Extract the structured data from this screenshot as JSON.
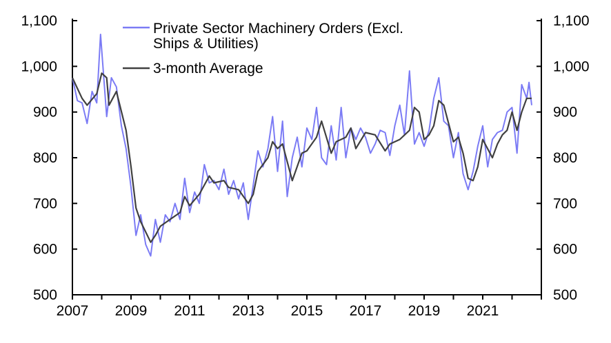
{
  "chart_data": {
    "type": "line",
    "title": "",
    "xlabel": "",
    "ylabel": "",
    "xlim": [
      2007,
      2023
    ],
    "ylim": [
      500,
      1100
    ],
    "grid": false,
    "legend_position": "top-center",
    "x_ticks": [
      {
        "value": 2007,
        "label": "2007"
      },
      {
        "value": 2009,
        "label": "2009"
      },
      {
        "value": 2011,
        "label": "2011"
      },
      {
        "value": 2013,
        "label": "2013"
      },
      {
        "value": 2015,
        "label": "2015"
      },
      {
        "value": 2017,
        "label": "2017"
      },
      {
        "value": 2019,
        "label": "2019"
      },
      {
        "value": 2021,
        "label": "2021"
      }
    ],
    "y_ticks": [
      {
        "value": 500,
        "label": "500"
      },
      {
        "value": 600,
        "label": "600"
      },
      {
        "value": 700,
        "label": "700"
      },
      {
        "value": 800,
        "label": "800"
      },
      {
        "value": 900,
        "label": "900"
      },
      {
        "value": 1000,
        "label": "1,000"
      },
      {
        "value": 1100,
        "label": "1,100"
      }
    ],
    "series": [
      {
        "name": "Private Sector Machinery Orders (Excl. Ships & Utilities)",
        "legend_lines": [
          "Private Sector Machinery Orders (Excl.",
          "Ships & Utilities)"
        ],
        "color": "#7b7bf5",
        "x": [
          2007.0,
          2007.17,
          2007.33,
          2007.5,
          2007.67,
          2007.83,
          2007.96,
          2008.17,
          2008.33,
          2008.5,
          2008.67,
          2008.83,
          2009.0,
          2009.17,
          2009.33,
          2009.5,
          2009.67,
          2009.83,
          2010.0,
          2010.17,
          2010.33,
          2010.5,
          2010.67,
          2010.83,
          2011.0,
          2011.17,
          2011.33,
          2011.5,
          2011.67,
          2011.83,
          2012.0,
          2012.17,
          2012.33,
          2012.5,
          2012.67,
          2012.83,
          2013.0,
          2013.17,
          2013.33,
          2013.5,
          2013.67,
          2013.83,
          2014.0,
          2014.17,
          2014.33,
          2014.5,
          2014.67,
          2014.83,
          2015.0,
          2015.17,
          2015.33,
          2015.5,
          2015.67,
          2015.83,
          2016.0,
          2016.17,
          2016.33,
          2016.5,
          2016.67,
          2016.83,
          2017.0,
          2017.17,
          2017.33,
          2017.5,
          2017.67,
          2017.83,
          2018.0,
          2018.17,
          2018.33,
          2018.5,
          2018.67,
          2018.83,
          2019.0,
          2019.17,
          2019.33,
          2019.5,
          2019.67,
          2019.83,
          2020.0,
          2020.17,
          2020.33,
          2020.5,
          2020.67,
          2020.83,
          2021.0,
          2021.17,
          2021.33,
          2021.5,
          2021.67,
          2021.83,
          2022.0,
          2022.17,
          2022.33,
          2022.5,
          2022.58,
          2022.67
        ],
        "values": [
          975,
          925,
          920,
          875,
          945,
          920,
          1070,
          890,
          975,
          955,
          870,
          820,
          735,
          630,
          675,
          610,
          585,
          665,
          615,
          675,
          660,
          700,
          665,
          755,
          680,
          725,
          700,
          785,
          745,
          750,
          730,
          775,
          720,
          750,
          710,
          745,
          665,
          740,
          815,
          780,
          820,
          890,
          770,
          880,
          715,
          800,
          845,
          780,
          865,
          840,
          910,
          800,
          785,
          870,
          795,
          910,
          800,
          865,
          840,
          865,
          845,
          810,
          830,
          860,
          855,
          805,
          870,
          915,
          850,
          990,
          830,
          855,
          825,
          860,
          930,
          975,
          880,
          870,
          800,
          855,
          765,
          730,
          770,
          825,
          870,
          780,
          840,
          855,
          860,
          900,
          910,
          810,
          960,
          930,
          965,
          915
        ]
      },
      {
        "name": "3-month Average",
        "legend_lines": [
          "3-month Average"
        ],
        "color": "#404040",
        "x": [
          2007.0,
          2007.33,
          2007.5,
          2007.83,
          2008.0,
          2008.17,
          2008.25,
          2008.5,
          2008.83,
          2009.0,
          2009.17,
          2009.33,
          2009.67,
          2009.83,
          2010.0,
          2010.33,
          2010.67,
          2010.83,
          2011.0,
          2011.33,
          2011.67,
          2011.83,
          2012.17,
          2012.33,
          2012.67,
          2013.0,
          2013.17,
          2013.33,
          2013.67,
          2013.83,
          2014.0,
          2014.17,
          2014.5,
          2014.83,
          2015.0,
          2015.33,
          2015.5,
          2015.83,
          2016.0,
          2016.33,
          2016.5,
          2016.67,
          2017.0,
          2017.33,
          2017.67,
          2017.83,
          2018.17,
          2018.5,
          2018.67,
          2018.83,
          2019.0,
          2019.17,
          2019.33,
          2019.5,
          2019.67,
          2020.0,
          2020.17,
          2020.33,
          2020.5,
          2020.67,
          2020.83,
          2021.0,
          2021.33,
          2021.5,
          2021.67,
          2021.83,
          2022.0,
          2022.17,
          2022.33,
          2022.5,
          2022.67
        ],
        "values": [
          975,
          930,
          915,
          940,
          985,
          975,
          915,
          945,
          860,
          780,
          690,
          660,
          615,
          630,
          650,
          665,
          680,
          715,
          695,
          720,
          760,
          745,
          750,
          735,
          730,
          700,
          720,
          770,
          800,
          835,
          820,
          830,
          750,
          810,
          815,
          845,
          880,
          810,
          835,
          845,
          865,
          820,
          855,
          850,
          815,
          830,
          840,
          860,
          910,
          900,
          840,
          850,
          870,
          925,
          915,
          835,
          845,
          810,
          755,
          750,
          780,
          840,
          800,
          830,
          850,
          860,
          900,
          860,
          900,
          930,
          930
        ]
      }
    ]
  }
}
